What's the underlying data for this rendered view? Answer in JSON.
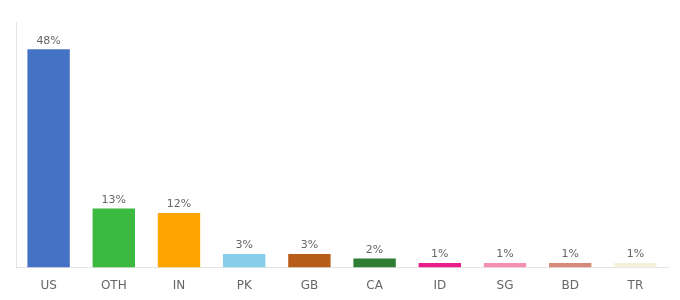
{
  "chart_data": {
    "type": "bar",
    "categories": [
      "US",
      "OTH",
      "IN",
      "PK",
      "GB",
      "CA",
      "ID",
      "SG",
      "BD",
      "TR"
    ],
    "values": [
      48,
      13,
      12,
      3,
      3,
      2,
      1,
      1,
      1,
      1
    ],
    "value_labels": [
      "48%",
      "13%",
      "12%",
      "3%",
      "3%",
      "2%",
      "1%",
      "1%",
      "1%",
      "1%"
    ],
    "colors": [
      "#4472c4",
      "#3cb940",
      "#ffa500",
      "#87ceeb",
      "#b85c1a",
      "#2e7d32",
      "#e91e8c",
      "#f48fb1",
      "#d4897a",
      "#f5f0dc"
    ],
    "ylim": [
      0,
      54
    ],
    "grid": false,
    "data_labels": true,
    "tick_labels": "x"
  }
}
